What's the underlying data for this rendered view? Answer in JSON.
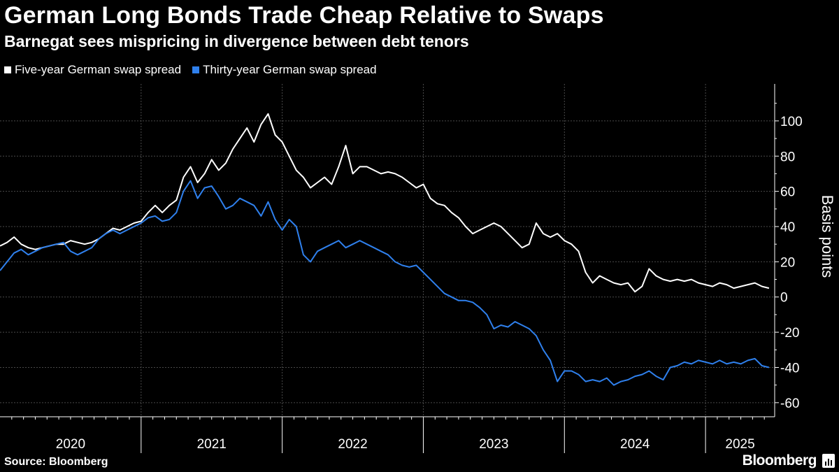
{
  "title": "German Long Bonds Trade Cheap Relative to Swaps",
  "subtitle": "Barnegat sees mispricing in divergence between debt tenors",
  "source": "Source: Bloomberg",
  "brand": "Bloomberg",
  "colors": {
    "background": "#000000",
    "series_1": "#ffffff",
    "series_2": "#2f80ed",
    "grid": "#555555"
  },
  "chart_data": {
    "type": "line",
    "title": "German Long Bonds Trade Cheap Relative to Swaps",
    "subtitle": "Barnegat sees mispricing in divergence between debt tenors",
    "xlabel": "",
    "ylabel": "Basis points",
    "xlim": [
      2020.0,
      2025.49
    ],
    "ylim": [
      -68,
      121
    ],
    "yticks": [
      100,
      80,
      60,
      40,
      20,
      0,
      -20,
      -40,
      -60
    ],
    "ytick_labels": [
      "100",
      "80",
      "60",
      "40",
      "20",
      "0",
      "-20",
      "-40",
      "-60"
    ],
    "year_ticks": [
      2020,
      2021,
      2022,
      2023,
      2024,
      2025
    ],
    "year_labels": [
      "2020",
      "2021",
      "2022",
      "2023",
      "2024",
      "2025"
    ],
    "grid": true,
    "legend_position": "top-left",
    "series": [
      {
        "name": "Five-year German swap spread",
        "color": "#ffffff",
        "x": [
          2020.0,
          2020.05,
          2020.1,
          2020.15,
          2020.2,
          2020.25,
          2020.3,
          2020.35,
          2020.4,
          2020.45,
          2020.5,
          2020.55,
          2020.6,
          2020.65,
          2020.7,
          2020.75,
          2020.8,
          2020.85,
          2020.9,
          2020.95,
          2021.0,
          2021.05,
          2021.1,
          2021.15,
          2021.2,
          2021.25,
          2021.3,
          2021.35,
          2021.4,
          2021.45,
          2021.5,
          2021.55,
          2021.6,
          2021.65,
          2021.7,
          2021.75,
          2021.8,
          2021.85,
          2021.9,
          2021.95,
          2022.0,
          2022.05,
          2022.1,
          2022.15,
          2022.2,
          2022.25,
          2022.3,
          2022.35,
          2022.4,
          2022.45,
          2022.5,
          2022.55,
          2022.6,
          2022.65,
          2022.7,
          2022.75,
          2022.8,
          2022.85,
          2022.9,
          2022.95,
          2023.0,
          2023.05,
          2023.1,
          2023.15,
          2023.2,
          2023.25,
          2023.3,
          2023.35,
          2023.4,
          2023.45,
          2023.5,
          2023.55,
          2023.6,
          2023.65,
          2023.7,
          2023.75,
          2023.8,
          2023.85,
          2023.9,
          2023.95,
          2024.0,
          2024.05,
          2024.1,
          2024.15,
          2024.2,
          2024.25,
          2024.3,
          2024.35,
          2024.4,
          2024.45,
          2024.5,
          2024.55,
          2024.6,
          2024.65,
          2024.7,
          2024.75,
          2024.8,
          2024.85,
          2024.9,
          2024.95,
          2025.0,
          2025.05,
          2025.1,
          2025.15,
          2025.2,
          2025.25,
          2025.3,
          2025.35,
          2025.4,
          2025.45
        ],
        "values": [
          29,
          31,
          34,
          30,
          28,
          27,
          28,
          29,
          30,
          30,
          32,
          31,
          30,
          31,
          33,
          36,
          39,
          38,
          40,
          42,
          43,
          48,
          52,
          48,
          52,
          55,
          68,
          74,
          65,
          70,
          78,
          72,
          76,
          84,
          90,
          96,
          88,
          98,
          104,
          92,
          88,
          80,
          72,
          68,
          62,
          65,
          68,
          64,
          74,
          86,
          70,
          74,
          74,
          72,
          70,
          71,
          70,
          68,
          65,
          62,
          64,
          56,
          53,
          52,
          48,
          45,
          40,
          36,
          38,
          40,
          42,
          40,
          36,
          32,
          28,
          30,
          42,
          36,
          34,
          36,
          32,
          30,
          26,
          14,
          8,
          12,
          10,
          8,
          7,
          8,
          3,
          6,
          16,
          12,
          10,
          9,
          10,
          9,
          10,
          8,
          7,
          6,
          8,
          7,
          5,
          6,
          7,
          8,
          6,
          5
        ]
      },
      {
        "name": "Thirty-year German swap spread",
        "color": "#2f80ed",
        "x": [
          2020.0,
          2020.05,
          2020.1,
          2020.15,
          2020.2,
          2020.25,
          2020.3,
          2020.35,
          2020.4,
          2020.45,
          2020.5,
          2020.55,
          2020.6,
          2020.65,
          2020.7,
          2020.75,
          2020.8,
          2020.85,
          2020.9,
          2020.95,
          2021.0,
          2021.05,
          2021.1,
          2021.15,
          2021.2,
          2021.25,
          2021.3,
          2021.35,
          2021.4,
          2021.45,
          2021.5,
          2021.55,
          2021.6,
          2021.65,
          2021.7,
          2021.75,
          2021.8,
          2021.85,
          2021.9,
          2021.95,
          2022.0,
          2022.05,
          2022.1,
          2022.15,
          2022.2,
          2022.25,
          2022.3,
          2022.35,
          2022.4,
          2022.45,
          2022.5,
          2022.55,
          2022.6,
          2022.65,
          2022.7,
          2022.75,
          2022.8,
          2022.85,
          2022.9,
          2022.95,
          2023.0,
          2023.05,
          2023.1,
          2023.15,
          2023.2,
          2023.25,
          2023.3,
          2023.35,
          2023.4,
          2023.45,
          2023.5,
          2023.55,
          2023.6,
          2023.65,
          2023.7,
          2023.75,
          2023.8,
          2023.85,
          2023.9,
          2023.95,
          2024.0,
          2024.05,
          2024.1,
          2024.15,
          2024.2,
          2024.25,
          2024.3,
          2024.35,
          2024.4,
          2024.45,
          2024.5,
          2024.55,
          2024.6,
          2024.65,
          2024.7,
          2024.75,
          2024.8,
          2024.85,
          2024.9,
          2024.95,
          2025.0,
          2025.05,
          2025.1,
          2025.15,
          2025.2,
          2025.25,
          2025.3,
          2025.35,
          2025.4,
          2025.45
        ],
        "values": [
          15,
          20,
          25,
          27,
          24,
          26,
          28,
          29,
          30,
          31,
          26,
          24,
          26,
          28,
          33,
          36,
          38,
          36,
          38,
          40,
          42,
          45,
          46,
          43,
          44,
          48,
          60,
          66,
          56,
          62,
          63,
          57,
          50,
          52,
          56,
          54,
          52,
          46,
          54,
          44,
          38,
          44,
          40,
          24,
          20,
          26,
          28,
          30,
          32,
          28,
          30,
          32,
          30,
          28,
          26,
          24,
          20,
          18,
          17,
          18,
          14,
          10,
          6,
          2,
          0,
          -2,
          -2,
          -3,
          -6,
          -10,
          -18,
          -16,
          -17,
          -14,
          -16,
          -18,
          -22,
          -30,
          -36,
          -48,
          -42,
          -42,
          -44,
          -48,
          -47,
          -48,
          -46,
          -50,
          -48,
          -47,
          -45,
          -44,
          -42,
          -45,
          -47,
          -40,
          -39,
          -37,
          -38,
          -36,
          -37,
          -38,
          -36,
          -38,
          -37,
          -38,
          -36,
          -35,
          -39,
          -40
        ]
      }
    ]
  }
}
